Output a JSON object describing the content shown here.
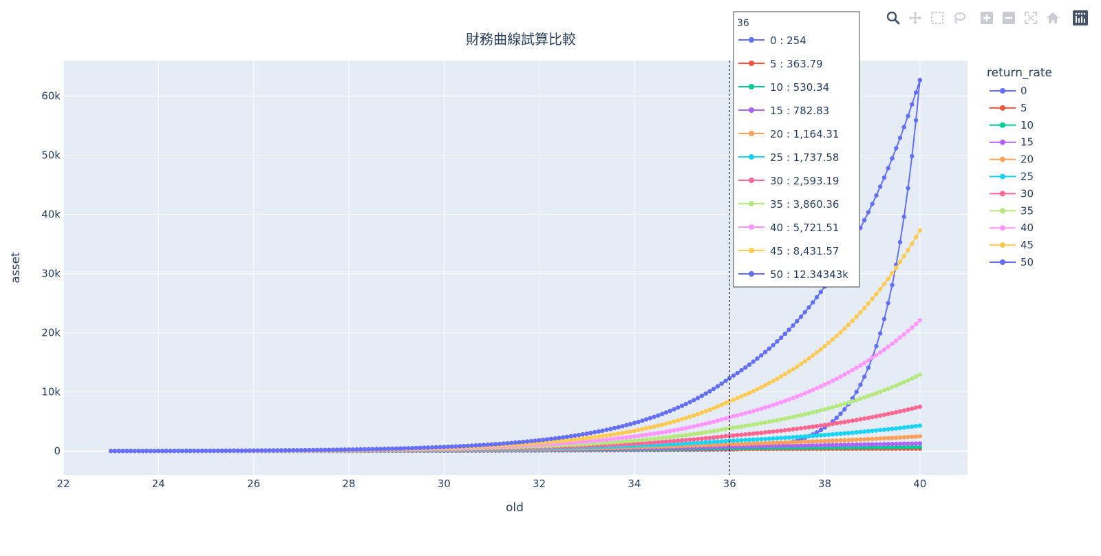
{
  "chart_data": {
    "type": "line",
    "title": "財務曲線試算比較",
    "xlabel": "old",
    "ylabel": "asset",
    "xlim": [
      22,
      41
    ],
    "ylim": [
      -4000,
      66000
    ],
    "x_ticks": [
      22,
      24,
      26,
      28,
      30,
      32,
      34,
      36,
      38,
      40
    ],
    "y_ticks": [
      0,
      10000,
      20000,
      30000,
      40000,
      50000,
      60000
    ],
    "x_tick_labels": [
      "22",
      "24",
      "26",
      "28",
      "30",
      "32",
      "34",
      "36",
      "38",
      "40"
    ],
    "y_tick_labels": [
      "0",
      "10k",
      "20k",
      "30k",
      "40k",
      "50k",
      "60k"
    ],
    "grid": true,
    "legend": {
      "title": "return_rate",
      "placement": "right",
      "entries": [
        "0",
        "5",
        "10",
        "15",
        "20",
        "25",
        "30",
        "35",
        "40",
        "45",
        "50"
      ]
    },
    "x_start": 23,
    "x_end": 40,
    "points_per_unit_x": 12,
    "series": [
      {
        "name": "0",
        "color": "#636efa",
        "value_at_23": 25,
        "value_at_36": 254,
        "value_at_40": 62700
      },
      {
        "name": "5",
        "color": "#EF553B",
        "value_at_23": 25,
        "value_at_36": 363.79,
        "value_at_40": 420
      },
      {
        "name": "10",
        "color": "#00cc96",
        "value_at_23": 25,
        "value_at_36": 530.34,
        "value_at_40": 700
      },
      {
        "name": "15",
        "color": "#ab63fa",
        "value_at_23": 25,
        "value_at_36": 782.83,
        "value_at_40": 1300
      },
      {
        "name": "20",
        "color": "#FFA15A",
        "value_at_23": 25,
        "value_at_36": 1164.31,
        "value_at_40": 2500
      },
      {
        "name": "25",
        "color": "#19d3f3",
        "value_at_23": 25,
        "value_at_36": 1737.58,
        "value_at_40": 4300
      },
      {
        "name": "30",
        "color": "#FF6692",
        "value_at_23": 25,
        "value_at_36": 2593.19,
        "value_at_40": 7500
      },
      {
        "name": "35",
        "color": "#B6E880",
        "value_at_23": 25,
        "value_at_36": 3860.36,
        "value_at_40": 12900
      },
      {
        "name": "40",
        "color": "#FF97FF",
        "value_at_23": 25,
        "value_at_36": 5721.51,
        "value_at_40": 22100
      },
      {
        "name": "45",
        "color": "#FECB52",
        "value_at_23": 25,
        "value_at_36": 8431.57,
        "value_at_40": 37300
      },
      {
        "name": "50",
        "color": "#636efa",
        "value_at_23": 25,
        "value_at_36": 12343.43,
        "value_at_40": 62700
      }
    ],
    "hover": {
      "x": 36,
      "header": "36",
      "rows": [
        {
          "name": "0",
          "color": "#636efa",
          "label": "0 : 254"
        },
        {
          "name": "5",
          "color": "#EF553B",
          "label": "5 : 363.79"
        },
        {
          "name": "10",
          "color": "#00cc96",
          "label": "10 : 530.34"
        },
        {
          "name": "15",
          "color": "#ab63fa",
          "label": "15 : 782.83"
        },
        {
          "name": "20",
          "color": "#FFA15A",
          "label": "20 : 1,164.31"
        },
        {
          "name": "25",
          "color": "#19d3f3",
          "label": "25 : 1,737.58"
        },
        {
          "name": "30",
          "color": "#FF6692",
          "label": "30 : 2,593.19"
        },
        {
          "name": "35",
          "color": "#B6E880",
          "label": "35 : 3,860.36"
        },
        {
          "name": "40",
          "color": "#FF97FF",
          "label": "40 : 5,721.51"
        },
        {
          "name": "45",
          "color": "#FECB52",
          "label": "45 : 8,431.57"
        },
        {
          "name": "50",
          "color": "#636efa",
          "label": "50 : 12.34343k"
        }
      ]
    }
  },
  "colors": {
    "plot_bg": "#e5ecf6",
    "grid": "#ffffff",
    "text": "#2a3f5f",
    "modebar_icon": "#c9cdd3",
    "modebar_active": "#44536b"
  },
  "modebar": {
    "icons": [
      "zoom-icon",
      "pan-icon",
      "box-select-icon",
      "lasso-select-icon",
      "zoom-in-icon",
      "zoom-out-icon",
      "autoscale-icon",
      "reset-axes-icon",
      "plotly-logo-icon"
    ]
  }
}
